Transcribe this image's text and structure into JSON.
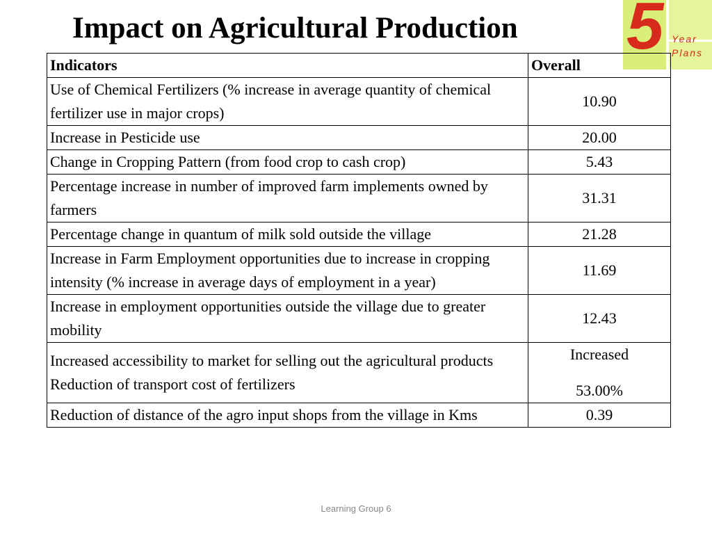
{
  "title": "Impact on Agricultural Production",
  "logo": {
    "digit": "5",
    "line1": "Year",
    "line2": "Plans"
  },
  "table": {
    "headers": {
      "indicator": "Indicators",
      "overall": "Overall"
    },
    "rows": [
      {
        "indicator": "Use of Chemical Fertilizers (% increase in average quantity of chemical fertilizer use in major crops)",
        "overall": "10.90"
      },
      {
        "indicator": "Increase in Pesticide use",
        "overall": "20.00"
      },
      {
        "indicator": "Change in Cropping Pattern (from food crop to cash crop)",
        "overall": "5.43"
      },
      {
        "indicator": "Percentage increase in number of improved farm implements owned by farmers",
        "overall": "31.31"
      },
      {
        "indicator": "Percentage change in quantum of milk sold outside the village",
        "overall": "21.28"
      },
      {
        "indicator": "Increase in Farm Employment opportunities due to increase in cropping intensity (% increase in average days of employment in a year)",
        "overall": "11.69"
      },
      {
        "indicator": "Increase in employment opportunities outside the village due to greater mobility",
        "overall": "12.43"
      },
      {
        "indicator": "Increased accessibility to market for selling out the agricultural products",
        "overall": "Increased",
        "indicator2": "Reduction of transport cost of fertilizers",
        "overall2": "53.00%"
      },
      {
        "indicator": "Reduction of distance of the agro input shops from the village in Kms",
        "overall": "0.39"
      }
    ]
  },
  "footer": "Learning Group 6"
}
